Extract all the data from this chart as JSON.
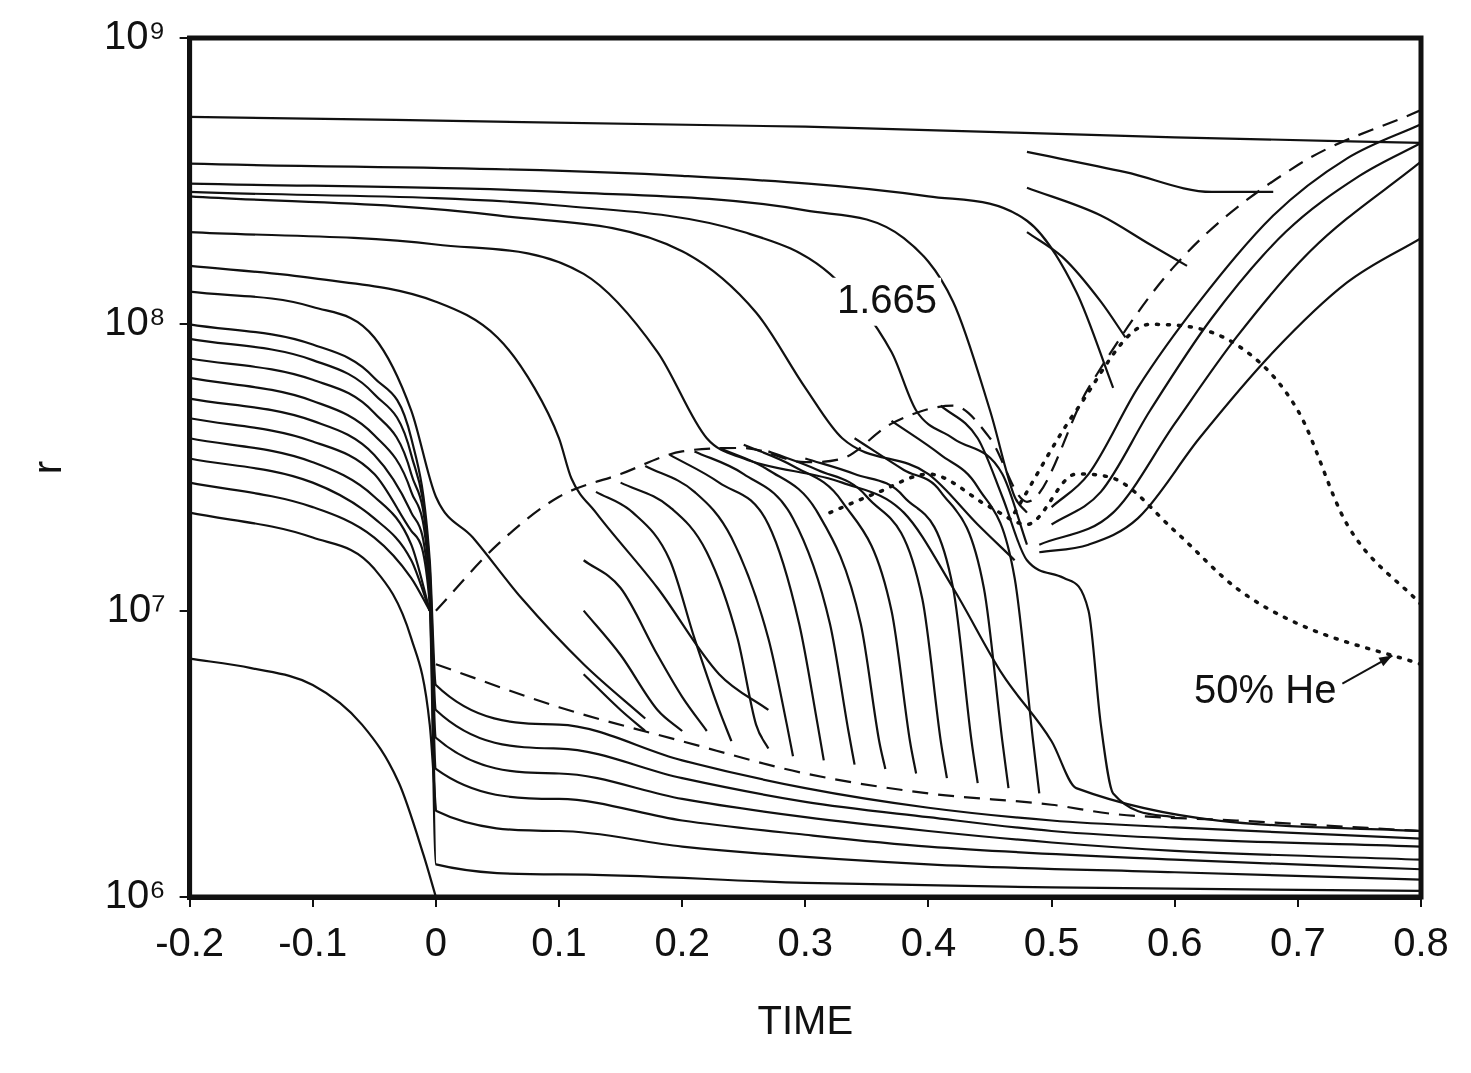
{
  "chart_data": {
    "type": "line",
    "xlabel": "TIME",
    "ylabel": "r",
    "log": "y",
    "grid": false,
    "legend": false,
    "marker": "none",
    "line_style": "solid",
    "color": "#111111",
    "xlim": [
      -0.2,
      0.8
    ],
    "xticks": [
      -0.2,
      -0.1,
      0,
      0.1,
      0.2,
      0.3,
      0.4,
      0.5,
      0.6,
      0.7,
      0.8
    ],
    "ylim": [
      1000000.0,
      1000000000.0
    ],
    "yticks": [
      {
        "value": 1000000.0,
        "label": "10⁶"
      },
      {
        "value": 10000000.0,
        "label": "10⁷"
      },
      {
        "value": 100000000.0,
        "label": "10⁸"
      },
      {
        "value": 1000000000.0,
        "label": "10⁹"
      }
    ],
    "annotations": [
      {
        "text": "50% He",
        "x": 0.78,
        "y": 7200000.0
      }
    ],
    "series": [
      {
        "x": [
          -0.2,
          0.3,
          0.6,
          0.8
        ],
        "values": [
          530000000.0,
          490000000.0,
          450000000.0,
          430000000.0
        ]
      },
      {
        "x": [
          -0.2,
          0.2,
          0.4,
          0.48,
          0.52,
          0.55
        ],
        "values": [
          364000000.0,
          330000000.0,
          280000000.0,
          230000000.0,
          130000000.0,
          60000000.0
        ]
      },
      {
        "name": "1.665",
        "x": [
          -0.2,
          0.1,
          0.3,
          0.38,
          0.42,
          0.45,
          0.47,
          0.48
        ],
        "values": [
          310000000.0,
          290000000.0,
          250000000.0,
          200000000.0,
          120000000.0,
          50000000.0,
          25000000.0,
          22000000.0
        ]
      },
      {
        "x": [
          -0.2,
          0.1,
          0.25,
          0.32,
          0.37,
          0.39,
          0.42,
          0.46,
          0.48
        ],
        "values": [
          290000000.0,
          260000000.0,
          210000000.0,
          150000000.0,
          80000000.0,
          50000000.0,
          40000000.0,
          30000000.0,
          17000000.0
        ]
      },
      {
        "x": [
          -0.2,
          0.05,
          0.2,
          0.26,
          0.3,
          0.33,
          0.4,
          0.44,
          0.47
        ],
        "values": [
          280000000.0,
          240000000.0,
          180000000.0,
          110000000.0,
          60000000.0,
          40000000.0,
          30000000.0,
          20000000.0,
          15000000.0
        ]
      },
      {
        "x": [
          -0.2,
          0,
          0.12,
          0.18,
          0.22,
          0.25,
          0.33,
          0.38,
          0.42,
          0.46,
          0.5,
          0.52,
          0.8
        ],
        "values": [
          210000000.0,
          190000000.0,
          150000000.0,
          80000000.0,
          40000000.0,
          34000000.0,
          28000000.0,
          22000000.0,
          12000000.0,
          6000000.0,
          3500000.0,
          2400000.0,
          1700000.0
        ]
      },
      {
        "x": [
          -0.2,
          -0.1,
          0,
          0.05,
          0.08,
          0.1,
          0.11,
          0.13,
          0.18,
          0.23,
          0.27
        ],
        "values": [
          160000000.0,
          145000000.0,
          120000000.0,
          90000000.0,
          60000000.0,
          40000000.0,
          29000000.0,
          22000000.0,
          12000000.0,
          6000000.0,
          4500000.0
        ]
      },
      {
        "x": [
          -0.2,
          -0.1,
          -0.05,
          -0.02,
          0,
          0.03,
          0.07,
          0.12,
          0.17
        ],
        "values": [
          130000000.0,
          115000000.0,
          90000000.0,
          50000000.0,
          25000000.0,
          18000000.0,
          11000000.0,
          6500000.0,
          4200000.0
        ]
      },
      {
        "x": [
          -0.2,
          -0.1,
          -0.05,
          -0.02,
          -0.005,
          0,
          0.1,
          0.2,
          0.3,
          0.4,
          0.5,
          0.6,
          0.8
        ],
        "values": [
          100000000.0,
          85000000.0,
          65000000.0,
          40000000.0,
          15000000.0,
          5500000.0,
          4000000.0,
          3000000.0,
          2400000.0,
          2050000.0,
          1850000.0,
          1750000.0,
          1600000.0
        ]
      },
      {
        "x": [
          -0.2,
          -0.1,
          -0.05,
          -0.02,
          -0.005,
          0,
          0.1,
          0.2,
          0.3,
          0.4,
          0.5,
          0.6,
          0.8
        ],
        "values": [
          89000000.0,
          75000000.0,
          57000000.0,
          35000000.0,
          14000000.0,
          4500000.0,
          3300000.0,
          2600000.0,
          2150000.0,
          1900000.0,
          1700000.0,
          1600000.0,
          1500000.0
        ]
      },
      {
        "x": [
          -0.2,
          -0.1,
          -0.05,
          -0.02,
          -0.005,
          0,
          0.1,
          0.2,
          0.3,
          0.4,
          0.5,
          0.6,
          0.8
        ],
        "values": [
          76000000.0,
          64000000.0,
          49000000.0,
          30000000.0,
          13000000.0,
          3600000.0,
          2700000.0,
          2200000.0,
          1900000.0,
          1700000.0,
          1550000.0,
          1450000.0,
          1350000.0
        ]
      },
      {
        "x": [
          -0.2,
          -0.1,
          -0.05,
          -0.02,
          -0.005,
          0,
          0.1,
          0.2,
          0.3,
          0.4,
          0.6,
          0.8
        ],
        "values": [
          65000000.0,
          54000000.0,
          41000000.0,
          26000000.0,
          12000000.0,
          2800000.0,
          2200000.0,
          1850000.0,
          1650000.0,
          1500000.0,
          1350000.0,
          1250000.0
        ]
      },
      {
        "x": [
          -0.2,
          -0.1,
          -0.05,
          -0.02,
          -0.005,
          0,
          0.1,
          0.2,
          0.4,
          0.6,
          0.8
        ],
        "values": [
          55000000.0,
          46000000.0,
          35000000.0,
          22000000.0,
          11000000.0,
          2000000.0,
          1700000.0,
          1500000.0,
          1300000.0,
          1220000.0,
          1150000.0
        ]
      },
      {
        "x": [
          -0.2,
          -0.1,
          -0.05,
          -0.02,
          -0.005,
          0,
          0.1,
          0.3,
          0.5,
          0.8
        ],
        "values": [
          47000000.0,
          39000000.0,
          30000000.0,
          19000000.0,
          10500000.0,
          1300000.0,
          1200000.0,
          1120000.0,
          1080000.0,
          1050000.0
        ]
      },
      {
        "x": [
          -0.2,
          -0.1,
          -0.05,
          -0.02,
          -0.005
        ],
        "values": [
          40000000.0,
          33000000.0,
          25000000.0,
          17000000.0,
          10000000.0
        ]
      },
      {
        "x": [
          -0.2,
          -0.1,
          -0.05,
          -0.02,
          -0.005
        ],
        "values": [
          34000000.0,
          28000000.0,
          21000000.0,
          15000000.0,
          10000000.0
        ]
      },
      {
        "x": [
          -0.2,
          -0.1,
          -0.05,
          -0.02,
          -0.005
        ],
        "values": [
          28000000.0,
          23000000.0,
          18000000.0,
          13000000.0,
          10000000.0
        ]
      },
      {
        "x": [
          -0.2,
          -0.1,
          -0.05,
          -0.02,
          -0.005,
          0
        ],
        "values": [
          22000000.0,
          18000000.0,
          14000000.0,
          8000000.0,
          4000000.0,
          2000000.0
        ]
      },
      {
        "x": [
          -0.2,
          -0.15,
          -0.1,
          -0.06,
          -0.03,
          -0.01,
          0
        ],
        "values": [
          6800000.0,
          6300000.0,
          5500000.0,
          4000000.0,
          2500000.0,
          1400000.0,
          1000000.0
        ]
      },
      {
        "x": [
          0.12,
          0.15,
          0.18,
          0.2,
          0.22
        ],
        "values": [
          15000000.0,
          12000000.0,
          7000000.0,
          5000000.0,
          3800000.0
        ]
      },
      {
        "x": [
          0.12,
          0.15,
          0.18,
          0.2
        ],
        "values": [
          10000000.0,
          7000000.0,
          4500000.0,
          3800000.0
        ]
      },
      {
        "x": [
          0.12,
          0.15,
          0.17
        ],
        "values": [
          6000000.0,
          4500000.0,
          3800000.0
        ]
      },
      {
        "x": [
          0.13,
          0.16,
          0.19,
          0.21,
          0.23,
          0.24
        ],
        "values": [
          26000000.0,
          22000000.0,
          15000000.0,
          8000000.0,
          4500000.0,
          3500000.0
        ]
      },
      {
        "x": [
          0.15,
          0.19,
          0.22,
          0.245,
          0.26,
          0.27
        ],
        "values": [
          28000000.0,
          23000000.0,
          16000000.0,
          8000000.0,
          4000000.0,
          3300000.0
        ]
      },
      {
        "x": [
          0.17,
          0.21,
          0.24,
          0.27,
          0.285,
          0.29
        ],
        "values": [
          32000000.0,
          26000000.0,
          18000000.0,
          8000000.0,
          4000000.0,
          3100000.0
        ]
      },
      {
        "x": [
          0.19,
          0.23,
          0.27,
          0.295,
          0.31,
          0.315
        ],
        "values": [
          35000000.0,
          28000000.0,
          20000000.0,
          9000000.0,
          4000000.0,
          3000000.0
        ]
      },
      {
        "x": [
          0.21,
          0.25,
          0.29,
          0.32,
          0.335,
          0.34
        ],
        "values": [
          36000000.0,
          30000000.0,
          21000000.0,
          9000000.0,
          3800000.0,
          2900000.0
        ]
      },
      {
        "x": [
          0.23,
          0.27,
          0.31,
          0.345,
          0.36,
          0.365
        ],
        "values": [
          37000000.0,
          31000000.0,
          22000000.0,
          9000000.0,
          3500000.0,
          2800000.0
        ]
      },
      {
        "x": [
          0.25,
          0.29,
          0.33,
          0.37,
          0.385,
          0.39
        ],
        "values": [
          38000000.0,
          32000000.0,
          24000000.0,
          10000000.0,
          3500000.0,
          2700000.0
        ]
      },
      {
        "x": [
          0.27,
          0.31,
          0.35,
          0.395,
          0.41,
          0.415
        ],
        "values": [
          36000000.0,
          31000000.0,
          25000000.0,
          11000000.0,
          3500000.0,
          2600000.0
        ]
      },
      {
        "x": [
          0.3,
          0.34,
          0.38,
          0.42,
          0.435,
          0.44
        ],
        "values": [
          34000000.0,
          30000000.0,
          25000000.0,
          12000000.0,
          3500000.0,
          2500000.0
        ]
      },
      {
        "x": [
          0.34,
          0.38,
          0.41,
          0.445,
          0.46,
          0.465
        ],
        "values": [
          40000000.0,
          31000000.0,
          26000000.0,
          12000000.0,
          3500000.0,
          2400000.0
        ]
      },
      {
        "x": [
          0.37,
          0.41,
          0.44,
          0.47,
          0.485,
          0.49
        ],
        "values": [
          46000000.0,
          35000000.0,
          27000000.0,
          13000000.0,
          3500000.0,
          2300000.0
        ]
      },
      {
        "x": [
          0.41,
          0.44,
          0.46,
          0.48,
          0.51,
          0.53,
          0.54,
          0.55,
          0.6
        ],
        "values": [
          52000000.0,
          40000000.0,
          25000000.0,
          15000000.0,
          13000000.0,
          10000000.0,
          4000000.0,
          2300000.0,
          1900000.0
        ]
      },
      {
        "x": [
          0.48,
          0.56,
          0.63,
          0.68
        ],
        "values": [
          400000000.0,
          340000000.0,
          290000000.0,
          290000000.0
        ]
      },
      {
        "x": [
          0.48,
          0.54,
          0.58,
          0.61
        ],
        "values": [
          300000000.0,
          240000000.0,
          190000000.0,
          160000000.0
        ]
      },
      {
        "x": [
          0.48,
          0.51,
          0.54,
          0.56
        ],
        "values": [
          210000000.0,
          170000000.0,
          120000000.0,
          90000000.0
        ]
      },
      {
        "x": [
          0.5,
          0.53,
          0.57,
          0.62,
          0.68,
          0.74,
          0.8
        ],
        "values": [
          23000000.0,
          30000000.0,
          60000000.0,
          120000000.0,
          240000000.0,
          380000000.0,
          500000000.0
        ]
      },
      {
        "x": [
          0.5,
          0.54,
          0.58,
          0.63,
          0.69,
          0.75,
          0.8
        ],
        "values": [
          20000000.0,
          26000000.0,
          50000000.0,
          105000000.0,
          210000000.0,
          330000000.0,
          430000000.0
        ]
      },
      {
        "x": [
          0.49,
          0.55,
          0.6,
          0.65,
          0.71,
          0.8
        ],
        "values": [
          17000000.0,
          22000000.0,
          45000000.0,
          90000000.0,
          180000000.0,
          370000000.0
        ]
      },
      {
        "x": [
          0.49,
          0.53,
          0.57,
          0.62,
          0.68,
          0.74,
          0.8
        ],
        "values": [
          16000000.0,
          17000000.0,
          21000000.0,
          40000000.0,
          80000000.0,
          140000000.0,
          200000000.0
        ]
      },
      {
        "line_style": "dashed",
        "x": [
          0,
          0.05,
          0.1,
          0.15,
          0.2,
          0.25,
          0.3,
          0.33,
          0.37,
          0.42,
          0.45,
          0.48,
          0.53,
          0.6,
          0.7,
          0.8
        ],
        "values": [
          10000000.0,
          17000000.0,
          25000000.0,
          30000000.0,
          36000000.0,
          37000000.0,
          33000000.0,
          34000000.0,
          45000000.0,
          52000000.0,
          40000000.0,
          24000000.0,
          60000000.0,
          160000000.0,
          360000000.0,
          560000000.0
        ]
      },
      {
        "line_style": "dashed",
        "x": [
          0,
          0.1,
          0.2,
          0.3,
          0.4,
          0.5,
          0.55,
          0.65,
          0.8
        ],
        "values": [
          6500000.0,
          4600000.0,
          3500000.0,
          2700000.0,
          2300000.0,
          2100000.0,
          1950000.0,
          1850000.0,
          1700000.0
        ]
      },
      {
        "line_style": "dotted",
        "x": [
          0.32,
          0.36,
          0.4,
          0.45,
          0.48,
          0.52,
          0.55,
          0.6,
          0.65,
          0.7,
          0.8
        ],
        "values": [
          22000000.0,
          26000000.0,
          30000000.0,
          23000000.0,
          20000000.0,
          30000000.0,
          29000000.0,
          19000000.0,
          12000000.0,
          9000000.0,
          6500000.0
        ]
      },
      {
        "line_style": "dotted",
        "x": [
          0.47,
          0.52,
          0.58,
          0.65,
          0.7,
          0.74,
          0.8
        ],
        "values": [
          22000000.0,
          50000000.0,
          100000000.0,
          85000000.0,
          50000000.0,
          20000000.0,
          10500000.0
        ]
      }
    ]
  }
}
